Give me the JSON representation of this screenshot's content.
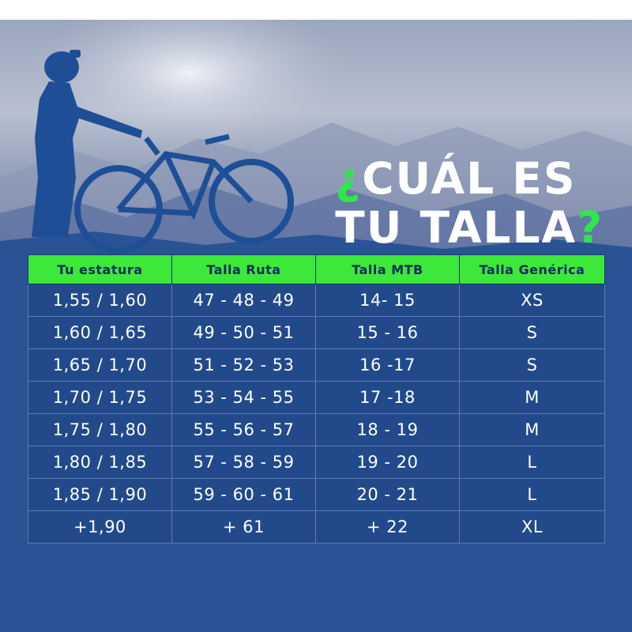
{
  "headline": {
    "prefix": "¿",
    "line1": "CUÁL ES",
    "line2_main": "TU TALLA",
    "suffix": "?"
  },
  "colors": {
    "background": "#1e4a8c",
    "header_fill": "#3ce83a",
    "accent_green": "#2ee84a",
    "text": "#ffffff"
  },
  "table": {
    "headers": [
      "Tu estatura",
      "Talla Ruta",
      "Talla MTB",
      "Talla Genérica"
    ],
    "rows": [
      [
        "1,55 / 1,60",
        "47 - 48 - 49",
        "14- 15",
        "XS"
      ],
      [
        "1,60 / 1,65",
        "49 - 50 - 51",
        "15 - 16",
        "S"
      ],
      [
        "1,65 / 1,70",
        "51 - 52 - 53",
        "16 -17",
        "S"
      ],
      [
        "1,70 / 1,75",
        "53 - 54 - 55",
        "17 -18",
        "M"
      ],
      [
        "1,75 / 1,80",
        "55 - 56 - 57",
        "18 - 19",
        "M"
      ],
      [
        "1,80 / 1,85",
        "57 - 58 - 59",
        "19 - 20",
        "L"
      ],
      [
        "1,85 / 1,90",
        "59 - 60 - 61",
        "20 - 21",
        "L"
      ],
      [
        "+1,90",
        "+ 61",
        "+ 22",
        "XL"
      ]
    ]
  }
}
